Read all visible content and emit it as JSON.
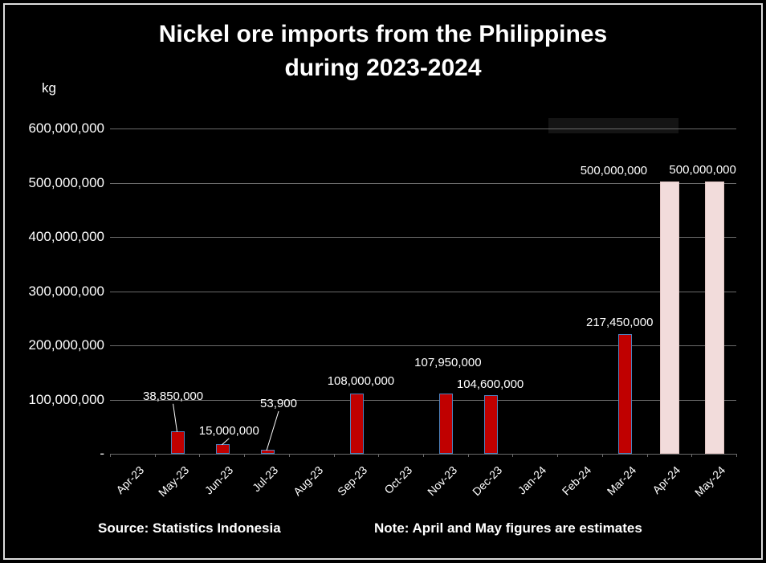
{
  "title": {
    "line1": "Nickel ore imports from the Philippines",
    "line2": "during 2023-2024"
  },
  "y_axis": {
    "unit_label": "kg",
    "tick_labels": [
      "600,000,000",
      "500,000,000",
      "400,000,000",
      "300,000,000",
      "200,000,000",
      "100,000,000",
      "-"
    ]
  },
  "footer": {
    "source": "Source: Statistics Indonesia",
    "note": "Note: April and May figures are estimates"
  },
  "colors": {
    "background": "#000000",
    "text": "#ffffff",
    "gridline": "#6b6b6b",
    "bar_actual_fill": "#c00000",
    "bar_actual_border": "#4f81bd",
    "bar_estimate_fill": "#f2dcdb",
    "bar_estimate_border": "#e3c7c5",
    "leader_line": "#ffffff",
    "frame_border": "#dcdcdc"
  },
  "chart_data": {
    "type": "bar",
    "title": "Nickel ore imports from the Philippines during 2023-2024",
    "ylabel": "kg",
    "ylim": [
      0,
      600000000
    ],
    "grid": true,
    "legend": "none",
    "categories": [
      "Apr-23",
      "May-23",
      "Jun-23",
      "Jul-23",
      "Aug-23",
      "Sep-23",
      "Oct-23",
      "Nov-23",
      "Dec-23",
      "Jan-24",
      "Feb-24",
      "Mar-24",
      "Apr-24",
      "May-24"
    ],
    "values": [
      0,
      38850000,
      15000000,
      53900,
      0,
      108000000,
      0,
      107950000,
      104600000,
      0,
      0,
      217450000,
      500000000,
      500000000
    ],
    "data_labels": [
      "",
      "38,850,000",
      "15,000,000",
      "53,900",
      "",
      "108,000,000",
      "",
      "107,950,000",
      "104,600,000",
      "",
      "",
      "217,450,000",
      "500,000,000",
      "500,000,000"
    ],
    "is_estimate": [
      false,
      false,
      false,
      false,
      false,
      false,
      false,
      false,
      false,
      false,
      false,
      false,
      true,
      true
    ]
  }
}
